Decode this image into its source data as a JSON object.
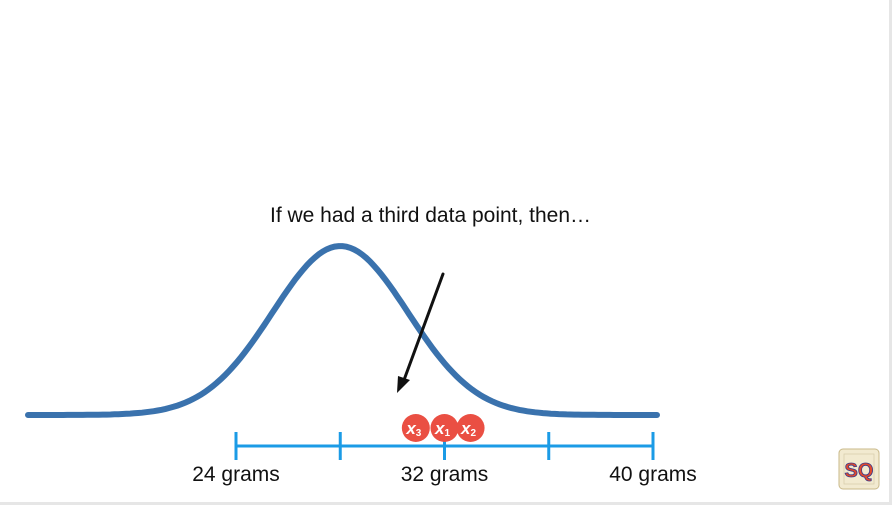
{
  "caption": "If we had a third data point, then…",
  "axis": {
    "min": 24,
    "max": 40,
    "tick_values": [
      24,
      28,
      32,
      36,
      40
    ],
    "labeled_ticks": [
      {
        "value": 24,
        "label": "24 grams"
      },
      {
        "value": 32,
        "label": "32 grams"
      },
      {
        "value": 40,
        "label": "40 grams"
      }
    ]
  },
  "distribution": {
    "mean": 28,
    "sd": 2.6
  },
  "points": [
    {
      "name": "x3",
      "label": "x",
      "subscript": "3",
      "value": 30.9
    },
    {
      "name": "x1",
      "label": "x",
      "subscript": "1",
      "value": 32.0
    },
    {
      "name": "x2",
      "label": "x",
      "subscript": "2",
      "value": 33.0
    }
  ],
  "colors": {
    "curve": "#3a72ad",
    "axis": "#1b9be6",
    "point": "#ea4f43",
    "arrow": "#111111",
    "text": "#111111"
  },
  "logo": {
    "text": "SQ",
    "icon": "statquest-logo"
  }
}
